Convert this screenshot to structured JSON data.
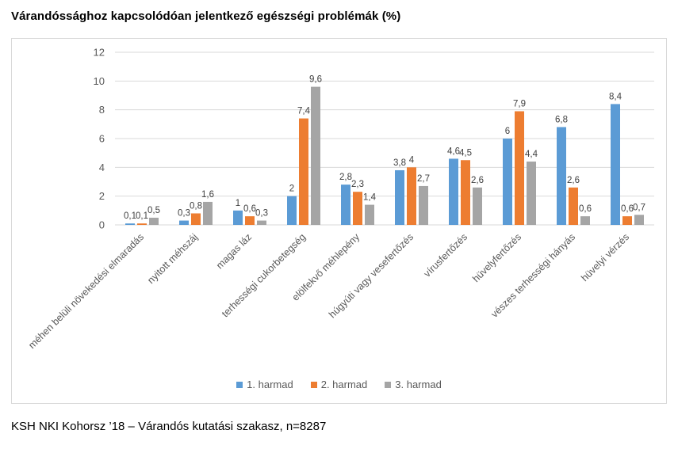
{
  "chart_data": {
    "type": "bar",
    "title": "Várandóssághoz kapcsolódóan jelentkező egészségi problémák (%)",
    "xlabel": "",
    "ylabel": "",
    "ylim": [
      0,
      12
    ],
    "yticks": [
      "0",
      "2",
      "4",
      "6",
      "8",
      "10",
      "12"
    ],
    "grid": true,
    "legend_position": "bottom",
    "categories": [
      "méhen belüli növekedési elmaradás",
      "nyitott méhszáj",
      "magas láz",
      "terhességi cukorbetegség",
      "elölfekvő méhlepény",
      "húgyúti vagy vesefertőzés",
      "vírusfertőzés",
      "hüvelyfertőzés",
      "vészes terhességi hányás",
      "hüvelyi vérzés"
    ],
    "series": [
      {
        "name": "1. harmad",
        "color": "#5b9bd5",
        "values": [
          0.1,
          0.3,
          1,
          2,
          2.8,
          3.8,
          4.6,
          6,
          6.8,
          8.4
        ],
        "labels": [
          "0,1",
          "0,3",
          "1",
          "2",
          "2,8",
          "3,8",
          "4,6",
          "6",
          "6,8",
          "8,4"
        ]
      },
      {
        "name": "2. harmad",
        "color": "#ed7d31",
        "values": [
          0.1,
          0.8,
          0.6,
          7.4,
          2.3,
          4,
          4.5,
          7.9,
          2.6,
          0.6
        ],
        "labels": [
          "0,1",
          "0,8",
          "0,6",
          "7,4",
          "2,3",
          "4",
          "4,5",
          "7,9",
          "2,6",
          "0,6"
        ]
      },
      {
        "name": "3. harmad",
        "color": "#a5a5a5",
        "values": [
          0.5,
          1.6,
          0.3,
          9.6,
          1.4,
          2.7,
          2.6,
          4.4,
          0.6,
          0.7
        ],
        "labels": [
          "0,5",
          "1,6",
          "0,3",
          "9,6",
          "1,4",
          "2,7",
          "2,6",
          "4,4",
          "0,6",
          "0,7"
        ]
      }
    ]
  },
  "source": "KSH NKI Kohorsz ’18 – Várandós kutatási szakasz, n=8287"
}
